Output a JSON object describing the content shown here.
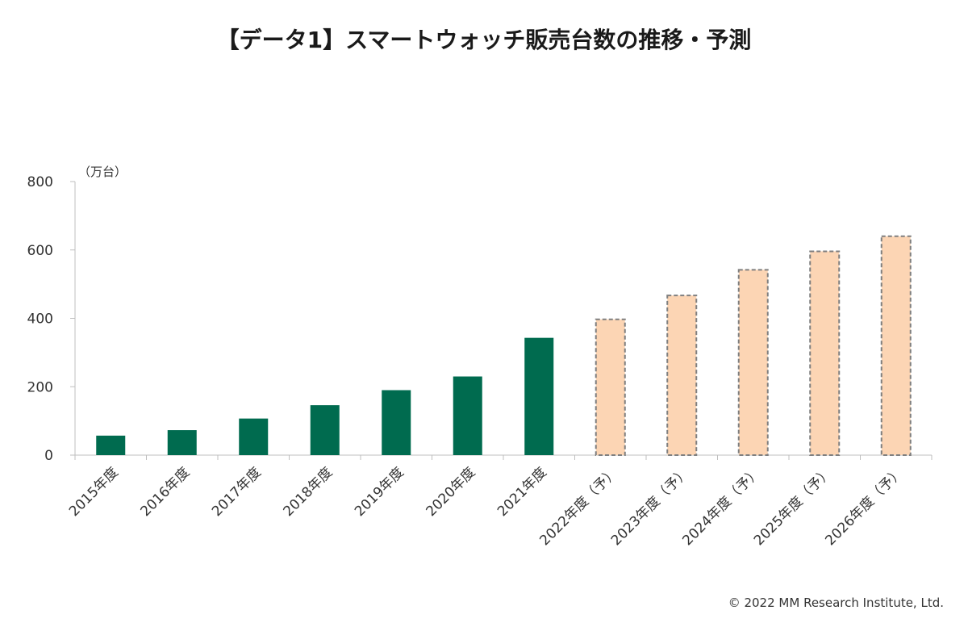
{
  "chart_data": {
    "type": "bar",
    "title": "【データ1】スマートウォッチ販売台数の推移・予測",
    "unit_label": "（万台）",
    "categories": [
      "2015年度",
      "2016年度",
      "2017年度",
      "2018年度",
      "2019年度",
      "2020年度",
      "2021年度",
      "2022年度（予）",
      "2023年度（予）",
      "2024年度（予）",
      "2025年度（予）",
      "2026年度（予）"
    ],
    "values": [
      57,
      73,
      107,
      146,
      190,
      230,
      343,
      397,
      467,
      542,
      596,
      640
    ],
    "forecast": [
      false,
      false,
      false,
      false,
      false,
      false,
      false,
      true,
      true,
      true,
      true,
      true
    ],
    "ylim": [
      0,
      800
    ],
    "yticks": [
      0,
      200,
      400,
      600,
      800
    ],
    "grid": false,
    "colors": {
      "actual": "#006B4F",
      "forecast_fill": "#FCD5B4",
      "forecast_border": "#7F7F7F",
      "axis": "#BFBFBF"
    }
  },
  "copyright": "© 2022 MM Research Institute, Ltd."
}
